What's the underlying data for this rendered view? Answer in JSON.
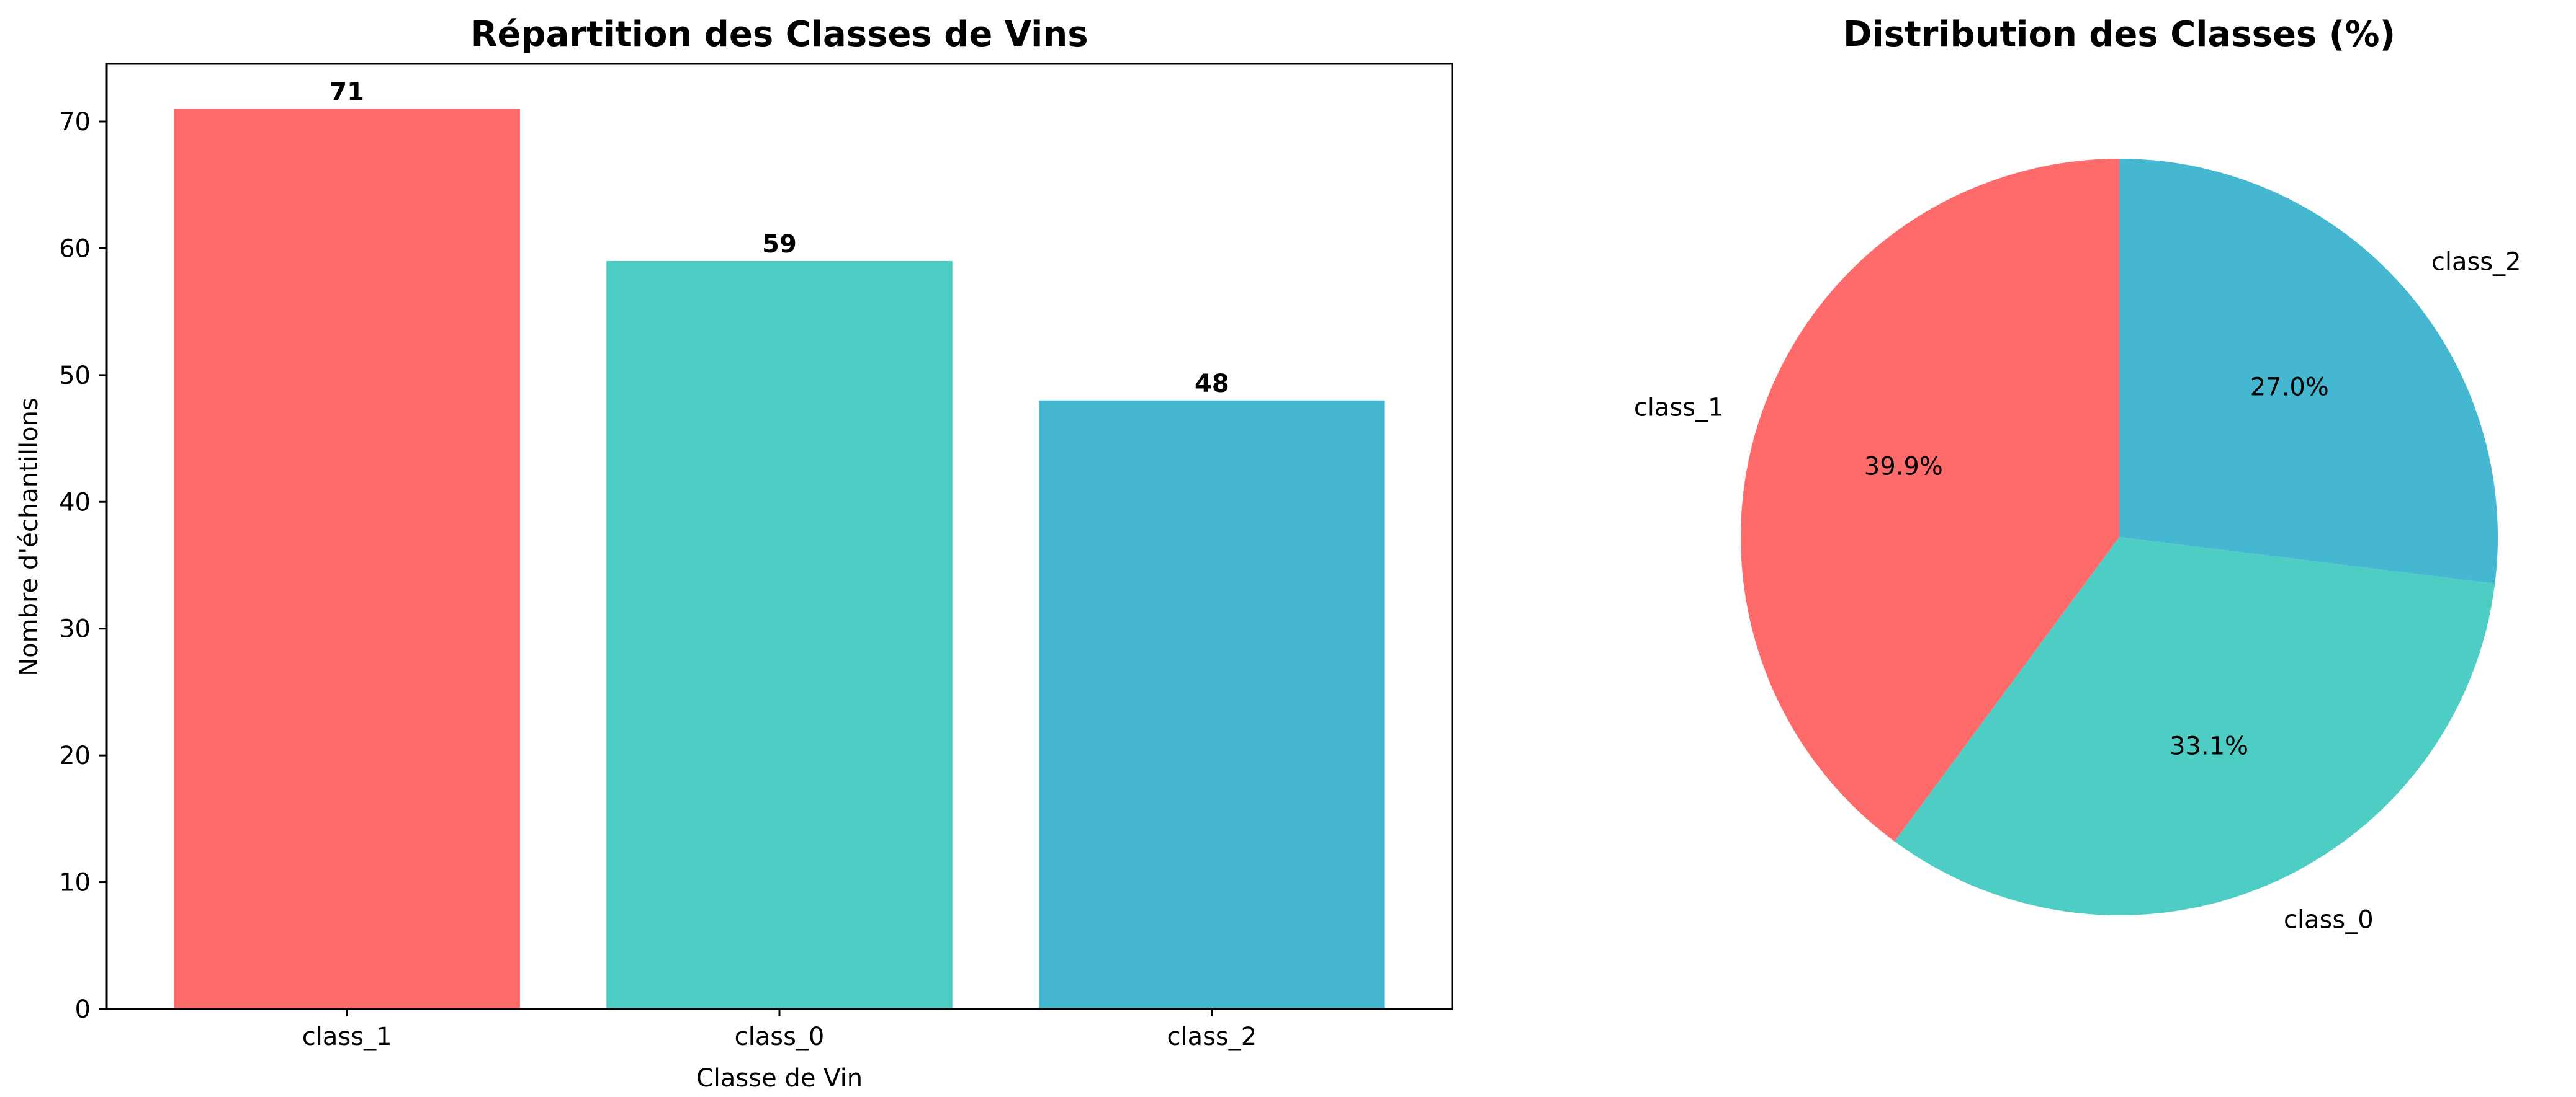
{
  "chart_data": [
    {
      "type": "bar",
      "title": "Répartition des Classes de Vins",
      "xlabel": "Classe de Vin",
      "ylabel": "Nombre d'échantillons",
      "categories": [
        "class_1",
        "class_0",
        "class_2"
      ],
      "values": [
        71,
        59,
        48
      ],
      "colors": [
        "#FF6B6B",
        "#4ECDC4",
        "#45B7D1"
      ],
      "ylim": [
        0,
        74.55
      ],
      "yticks": [
        0,
        10,
        20,
        30,
        40,
        50,
        60,
        70
      ],
      "data_labels": [
        "71",
        "59",
        "48"
      ],
      "grid": false
    },
    {
      "type": "pie",
      "title": "Distribution des Classes (%)",
      "labels": [
        "class_1",
        "class_0",
        "class_2"
      ],
      "values": [
        71,
        59,
        48
      ],
      "percent_labels": [
        "39.9%",
        "33.1%",
        "27.0%"
      ],
      "colors": [
        "#FF6B6B",
        "#4ECDC4",
        "#45B7D1"
      ],
      "start_angle_deg": 90,
      "direction": "counterclockwise"
    }
  ]
}
